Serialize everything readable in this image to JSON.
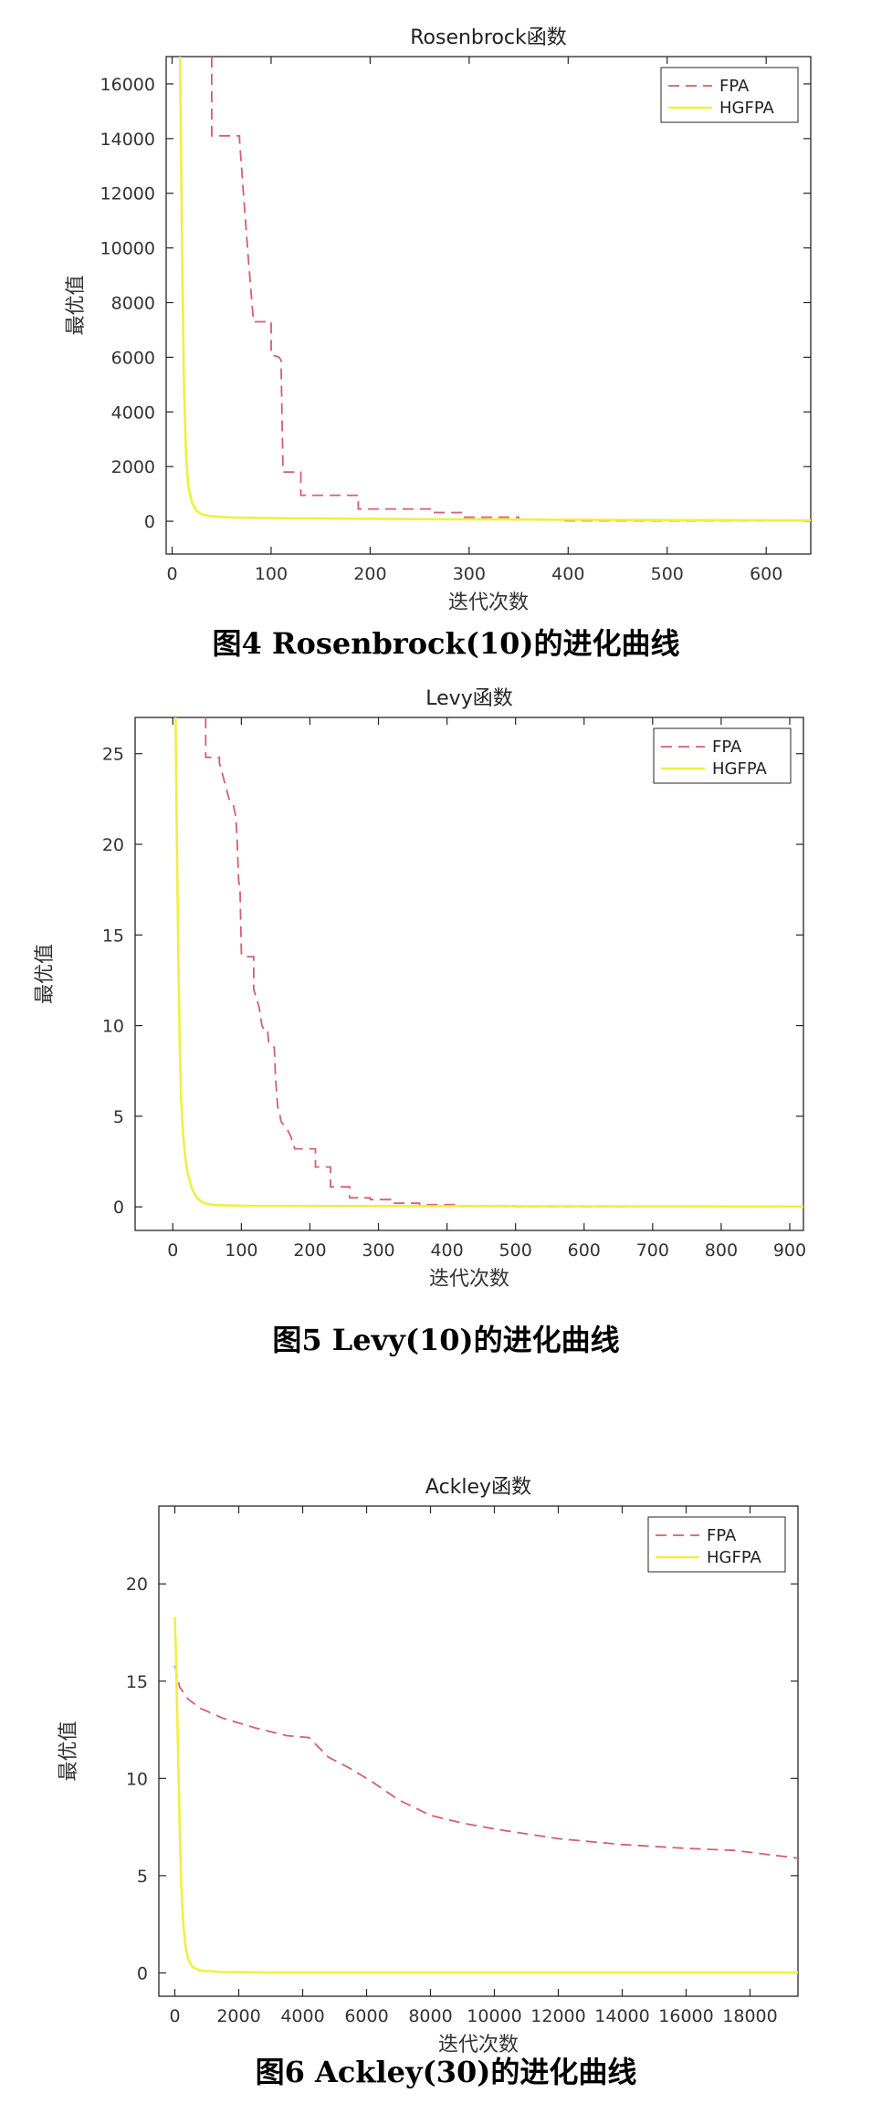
{
  "chart_data": [
    {
      "type": "line",
      "title": "Rosenbrock函数",
      "xlabel": "迭代次数",
      "ylabel": "最优值",
      "xlim": [
        -6,
        645
      ],
      "ylim": [
        -1200,
        17000
      ],
      "xticks": [
        0,
        100,
        200,
        300,
        400,
        500,
        600
      ],
      "yticks": [
        0,
        2000,
        4000,
        6000,
        8000,
        10000,
        12000,
        14000,
        16000
      ],
      "legend_position": "top-right",
      "series": [
        {
          "name": "FPA",
          "color": "#d45f6f",
          "dash": true,
          "x": [
            40,
            40,
            68,
            68,
            72,
            77,
            82,
            82,
            100,
            100,
            108,
            110,
            112,
            112,
            130,
            130,
            188,
            188,
            265,
            265,
            292,
            292,
            350,
            350,
            395,
            395,
            645
          ],
          "y": [
            17000,
            14100,
            14100,
            14000,
            12000,
            9600,
            7400,
            7300,
            7300,
            6100,
            6000,
            5900,
            1800,
            1800,
            1800,
            950,
            950,
            450,
            450,
            320,
            320,
            150,
            150,
            60,
            60,
            20,
            20
          ]
        },
        {
          "name": "HGFPA",
          "color": "#f2ee42",
          "dash": false,
          "x": [
            8,
            10,
            12,
            14,
            16,
            18,
            20,
            24,
            30,
            40,
            60,
            120,
            250,
            450,
            645
          ],
          "y": [
            17000,
            10000,
            5000,
            2500,
            1400,
            1000,
            700,
            400,
            250,
            180,
            140,
            110,
            80,
            50,
            30
          ]
        }
      ]
    },
    {
      "type": "line",
      "title": "Levy函数",
      "xlabel": "迭代次数",
      "ylabel": "最优值",
      "xlim": [
        -55,
        920
      ],
      "ylim": [
        -1.3,
        27
      ],
      "xticks": [
        0,
        100,
        200,
        300,
        400,
        500,
        600,
        700,
        800,
        900
      ],
      "yticks": [
        0,
        5,
        10,
        15,
        20,
        25
      ],
      "legend_position": "top-right",
      "series": [
        {
          "name": "FPA",
          "color": "#d45f6f",
          "dash": true,
          "x": [
            48,
            48,
            68,
            68,
            82,
            88,
            92,
            94,
            96,
            98,
            100,
            103,
            118,
            118,
            126,
            130,
            133,
            138,
            140,
            148,
            150,
            153,
            155,
            158,
            168,
            172,
            178,
            178,
            208,
            208,
            230,
            230,
            258,
            258,
            288,
            288,
            318,
            318,
            360,
            360,
            420,
            420,
            500,
            500,
            920
          ],
          "y": [
            27,
            24.8,
            24.8,
            24.5,
            22.5,
            22.2,
            21.5,
            20,
            18,
            17.5,
            14,
            13.8,
            13.8,
            12,
            11,
            10,
            9.8,
            9.8,
            9,
            8.8,
            7,
            5.5,
            5.3,
            4.7,
            4.2,
            3.9,
            3.2,
            3.2,
            3.2,
            2.2,
            2.2,
            1.1,
            1.1,
            0.5,
            0.5,
            0.4,
            0.4,
            0.2,
            0.2,
            0.12,
            0.12,
            0.05,
            0.05,
            0.02,
            0.02
          ]
        },
        {
          "name": "HGFPA",
          "color": "#f2ee42",
          "dash": false,
          "x": [
            4,
            6,
            8,
            10,
            12,
            15,
            18,
            22,
            28,
            35,
            45,
            60,
            120,
            920
          ],
          "y": [
            27,
            20,
            14,
            9,
            6,
            4,
            2.8,
            1.8,
            1,
            0.5,
            0.2,
            0.1,
            0.05,
            0.02
          ]
        }
      ]
    },
    {
      "type": "line",
      "title": "Ackley函数",
      "xlabel": "迭代次数",
      "ylabel": "最优值",
      "xlim": [
        -500,
        19500
      ],
      "ylim": [
        -1.2,
        24
      ],
      "xticks": [
        0,
        2000,
        4000,
        6000,
        8000,
        10000,
        12000,
        14000,
        16000,
        18000
      ],
      "yticks": [
        0,
        5,
        10,
        15,
        20
      ],
      "legend_position": "top-right",
      "series": [
        {
          "name": "FPA",
          "color": "#d45f6f",
          "dash": true,
          "x": [
            0,
            150,
            400,
            800,
            1500,
            2500,
            3500,
            4200,
            4800,
            5500,
            6200,
            7000,
            8000,
            9000,
            10000,
            12000,
            14000,
            16000,
            17500,
            19500
          ],
          "y": [
            15.8,
            14.7,
            14.1,
            13.6,
            13.1,
            12.6,
            12.2,
            12.1,
            11.1,
            10.5,
            9.8,
            8.9,
            8.1,
            7.7,
            7.4,
            6.9,
            6.6,
            6.4,
            6.3,
            5.9
          ]
        },
        {
          "name": "HGFPA",
          "color": "#f2ee42",
          "dash": false,
          "x": [
            0,
            40,
            80,
            120,
            160,
            200,
            260,
            330,
            420,
            550,
            800,
            1500,
            3000,
            19500
          ],
          "y": [
            18.3,
            16,
            13,
            10,
            7,
            4.5,
            2.6,
            1.4,
            0.7,
            0.3,
            0.12,
            0.05,
            0.02,
            0.02
          ]
        }
      ]
    }
  ],
  "captions": {
    "fig4": "图4 Rosenbrock(10)的进化曲线",
    "fig5": "图5 Levy(10)的进化曲线",
    "fig6": "图6 Ackley(30)的进化曲线"
  }
}
